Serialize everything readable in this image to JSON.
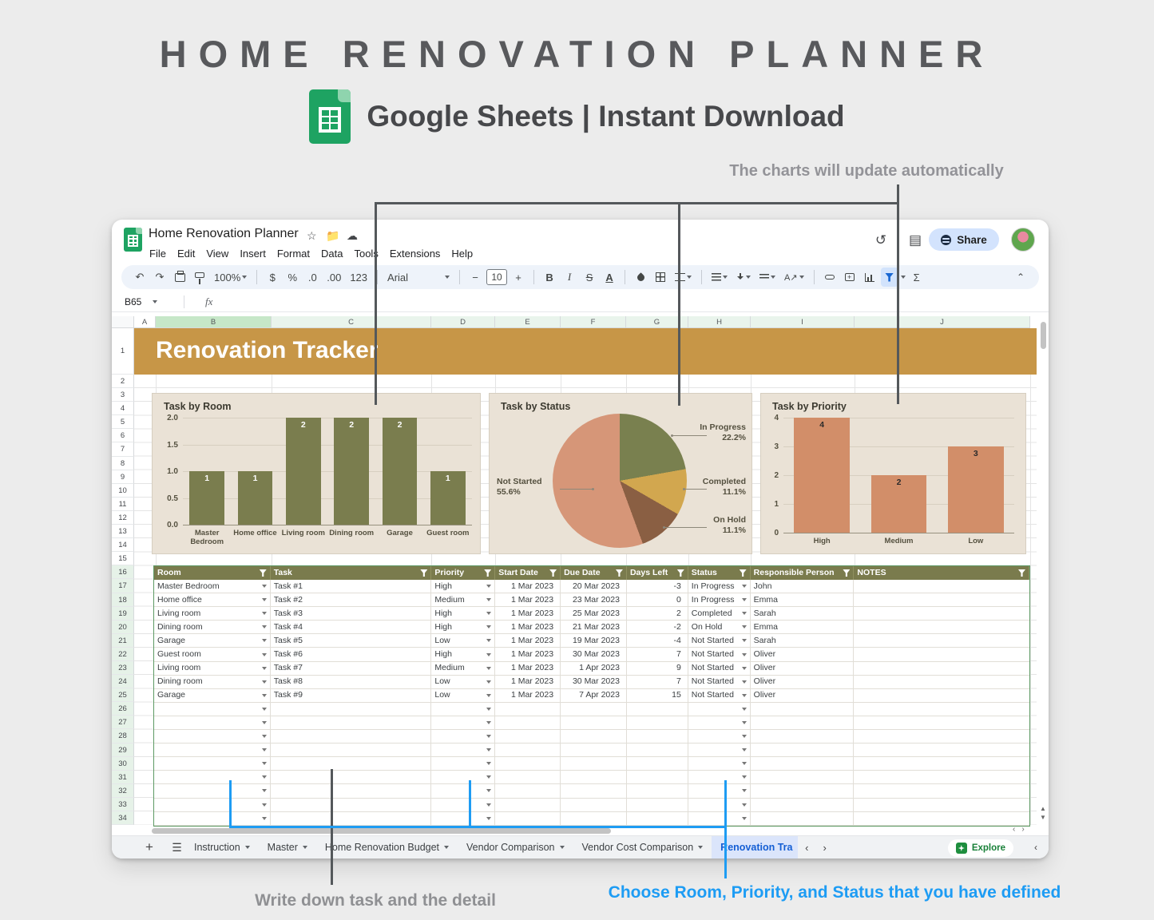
{
  "promo": {
    "title": "HOME RENOVATION PLANNER",
    "subtitle": "Google Sheets | Instant Download"
  },
  "annotations": {
    "top": "The charts will update automatically",
    "bottom_left": "Write down task and the detail",
    "bottom_right": "Choose Room, Priority, and Status that you have defined"
  },
  "colors": {
    "banner": "#c79647",
    "table_header_olive": "#7a7b4d",
    "annotation_blue": "#1e9cf3",
    "annotation_gray": "#54585b",
    "active_tab_text": "#155fd4",
    "sheets_green": "#1ea362",
    "share_pill": "#d3e3fd"
  },
  "window": {
    "titlebar": {
      "doc_title": "Home Renovation Planner"
    },
    "menu": {
      "items": [
        "File",
        "Edit",
        "View",
        "Insert",
        "Format",
        "Data",
        "Tools",
        "Extensions",
        "Help"
      ]
    },
    "toolbar": {
      "zoom_value": "100%",
      "currency": "$",
      "percent": "%",
      "decrease_decimal": ".0",
      "increase_decimal": ".00",
      "more_formats": "123",
      "font_name": "Arial",
      "font_size": "10",
      "bold": "B",
      "italic": "I",
      "strikethrough": "S",
      "text_color": "A",
      "functions": "Σ"
    },
    "formula_bar": {
      "cell_ref": "B65",
      "fx_label": "fx"
    },
    "actions": {
      "share_label": "Share",
      "explore_label": "Explore"
    },
    "grid": {
      "column_headers": [
        "A",
        "B",
        "C",
        "D",
        "E",
        "F",
        "G",
        "H",
        "I",
        "J"
      ],
      "first_row": 1,
      "last_row": 34,
      "green_from_row": 16,
      "banner_title": "Renovation Tracker"
    },
    "tabs": {
      "items": [
        {
          "label": "Instruction",
          "active": false
        },
        {
          "label": "Master",
          "active": false
        },
        {
          "label": "Home Renovation Budget",
          "active": false
        },
        {
          "label": "Vendor Comparison",
          "active": false
        },
        {
          "label": "Vendor Cost Comparison",
          "active": false
        },
        {
          "label": "Renovation Tra",
          "active": true
        }
      ]
    }
  },
  "chart_data": [
    {
      "type": "bar",
      "title": "Task by Room",
      "categories": [
        "Master Bedroom",
        "Home office",
        "Living room",
        "Dining room",
        "Garage",
        "Guest room"
      ],
      "values": [
        1,
        1,
        2,
        2,
        2,
        1
      ],
      "yticks": [
        "2.0",
        "1.5",
        "1.0",
        "0.5",
        "0.0"
      ],
      "ylim": [
        0,
        2
      ],
      "grid": true,
      "legend": "none",
      "bar_color": "#7a7d4e",
      "value_label_color": "#ffffff",
      "bg": "#eae2d6"
    },
    {
      "type": "pie",
      "title": "Task by Status",
      "slices": [
        {
          "label": "In Progress",
          "pct": "22.2%",
          "value": 22.2,
          "color": "#79804f"
        },
        {
          "label": "Completed",
          "pct": "11.1%",
          "value": 11.1,
          "color": "#d2a74f"
        },
        {
          "label": "On Hold",
          "pct": "11.1%",
          "value": 11.1,
          "color": "#8a5f43"
        },
        {
          "label": "Not Started",
          "pct": "55.6%",
          "value": 55.6,
          "color": "#d69678"
        }
      ],
      "start_angle": "top",
      "direction": "clockwise",
      "bg": "#eae2d6"
    },
    {
      "type": "bar",
      "title": "Task by Priority",
      "categories": [
        "High",
        "Medium",
        "Low"
      ],
      "values": [
        4,
        2,
        3
      ],
      "yticks": [
        "4",
        "3",
        "2",
        "1",
        "0"
      ],
      "ylim": [
        0,
        4
      ],
      "grid": true,
      "legend": "none",
      "bar_color": "#d28e69",
      "value_label_color": "#2b2b2b",
      "bg": "#eae2d6"
    }
  ],
  "table": {
    "headers": [
      "Room",
      "Task",
      "Priority",
      "Start Date",
      "Due Date",
      "Days Left",
      "Status",
      "Responsible Person",
      "NOTES"
    ],
    "rows": [
      {
        "room": "Master Bedroom",
        "task": "Task #1",
        "priority": "High",
        "start": "1 Mar 2023",
        "due": "20 Mar 2023",
        "days": "-3",
        "status": "In Progress",
        "person": "John",
        "notes": ""
      },
      {
        "room": "Home office",
        "task": "Task #2",
        "priority": "Medium",
        "start": "1 Mar 2023",
        "due": "23 Mar 2023",
        "days": "0",
        "status": "In Progress",
        "person": "Emma",
        "notes": ""
      },
      {
        "room": "Living room",
        "task": "Task #3",
        "priority": "High",
        "start": "1 Mar 2023",
        "due": "25 Mar 2023",
        "days": "2",
        "status": "Completed",
        "person": "Sarah",
        "notes": ""
      },
      {
        "room": "Dining room",
        "task": "Task #4",
        "priority": "High",
        "start": "1 Mar 2023",
        "due": "21 Mar 2023",
        "days": "-2",
        "status": "On Hold",
        "person": "Emma",
        "notes": ""
      },
      {
        "room": "Garage",
        "task": "Task #5",
        "priority": "Low",
        "start": "1 Mar 2023",
        "due": "19 Mar 2023",
        "days": "-4",
        "status": "Not Started",
        "person": "Sarah",
        "notes": ""
      },
      {
        "room": "Guest room",
        "task": "Task #6",
        "priority": "High",
        "start": "1 Mar 2023",
        "due": "30 Mar 2023",
        "days": "7",
        "status": "Not Started",
        "person": "Oliver",
        "notes": ""
      },
      {
        "room": "Living room",
        "task": "Task #7",
        "priority": "Medium",
        "start": "1 Mar 2023",
        "due": "1 Apr 2023",
        "days": "9",
        "status": "Not Started",
        "person": "Oliver",
        "notes": ""
      },
      {
        "room": "Dining room",
        "task": "Task #8",
        "priority": "Low",
        "start": "1 Mar 2023",
        "due": "30 Mar 2023",
        "days": "7",
        "status": "Not Started",
        "person": "Oliver",
        "notes": ""
      },
      {
        "room": "Garage",
        "task": "Task #9",
        "priority": "Low",
        "start": "1 Mar 2023",
        "due": "7 Apr 2023",
        "days": "15",
        "status": "Not Started",
        "person": "Oliver",
        "notes": ""
      }
    ],
    "empty_row_count": 9
  }
}
